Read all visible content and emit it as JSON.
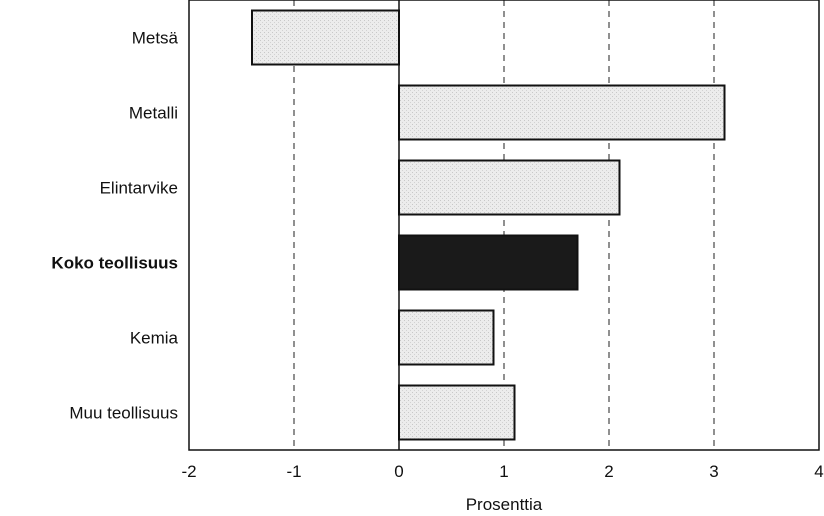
{
  "chart_data": {
    "type": "bar",
    "orientation": "horizontal",
    "categories": [
      "Metsä",
      "Metalli",
      "Elintarvike",
      "Koko teollisuus",
      "Kemia",
      "Muu teollisuus"
    ],
    "values": [
      -1.4,
      3.1,
      2.1,
      1.7,
      0.9,
      1.1
    ],
    "highlight_category": "Koko teollisuus",
    "xlabel": "Prosenttia",
    "xlim": [
      -2,
      4
    ],
    "xticks": [
      "-2",
      "-1",
      "0",
      "1",
      "2",
      "3",
      "4"
    ],
    "grid": "vertical dashed",
    "colors": {
      "bar": "#ebebeb",
      "highlight": "#1a1a1a",
      "outline": "#111111"
    }
  }
}
